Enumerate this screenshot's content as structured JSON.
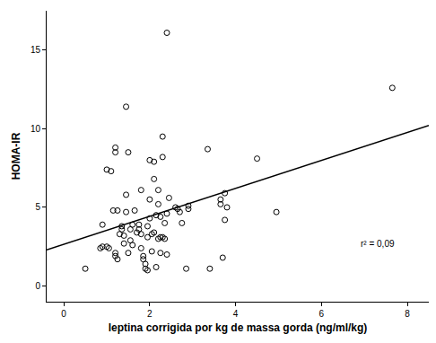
{
  "chart_data": {
    "type": "scatter",
    "x_label": "leptina corrigida por kg de massa gorda (ng/ml/kg)",
    "y_label": "HOMA-IR",
    "marker": "open_circle",
    "color": "#000000",
    "x": [
      0.5,
      0.85,
      0.9,
      1.0,
      1.05,
      0.9,
      1.0,
      1.1,
      1.2,
      1.2,
      1.15,
      1.25,
      1.2,
      1.25,
      1.2,
      1.3,
      1.35,
      1.35,
      1.4,
      1.4,
      1.45,
      1.45,
      1.45,
      1.5,
      1.5,
      1.55,
      1.55,
      1.6,
      1.6,
      1.65,
      1.7,
      1.75,
      1.75,
      1.8,
      1.8,
      1.8,
      1.85,
      1.85,
      1.9,
      1.9,
      1.95,
      1.95,
      1.95,
      2.0,
      2.0,
      2.0,
      2.05,
      2.05,
      2.1,
      2.1,
      2.1,
      2.15,
      2.15,
      2.2,
      2.2,
      2.2,
      2.25,
      2.25,
      2.25,
      2.3,
      2.3,
      2.3,
      2.35,
      2.35,
      2.4,
      2.4,
      2.4,
      2.45,
      2.6,
      2.65,
      2.7,
      2.75,
      2.85,
      2.9,
      2.9,
      3.35,
      3.4,
      3.65,
      3.65,
      3.7,
      3.75,
      3.75,
      3.8,
      4.5,
      4.95,
      7.65
    ],
    "values": [
      1.1,
      2.4,
      2.5,
      2.5,
      2.4,
      3.9,
      7.4,
      7.3,
      8.5,
      8.8,
      4.8,
      4.8,
      2.1,
      1.7,
      1.9,
      3.3,
      3.6,
      3.8,
      3.2,
      2.7,
      5.8,
      4.7,
      11.4,
      2.1,
      8.5,
      3.6,
      2.9,
      3.9,
      2.6,
      4.8,
      3.4,
      3.6,
      3.9,
      6.1,
      3.3,
      2.4,
      1.7,
      1.9,
      1.4,
      1.1,
      1.0,
      3.1,
      3.8,
      4.3,
      5.5,
      8.0,
      2.2,
      3.3,
      3.4,
      6.8,
      7.9,
      1.2,
      4.5,
      5.2,
      6.1,
      3.0,
      4.4,
      3.1,
      2.1,
      9.5,
      8.2,
      3.1,
      3.0,
      4.0,
      2.0,
      16.1,
      4.6,
      5.6,
      5.0,
      4.9,
      4.7,
      4.0,
      1.1,
      5.1,
      4.9,
      8.7,
      1.1,
      5.5,
      5.2,
      1.8,
      4.2,
      5.9,
      5.0,
      8.1,
      4.7,
      12.6
    ],
    "fit": {
      "intercept": 2.65,
      "slope": 0.89,
      "line_style": "solid"
    },
    "annotation": {
      "text": "r² = 0,09",
      "x": 7.3,
      "y": 2.7
    },
    "xlim": [
      -0.4,
      8.5
    ],
    "xticks": [
      0,
      2,
      4,
      6,
      8
    ],
    "ylim": [
      -1,
      17.5
    ],
    "yticks": [
      0,
      5,
      10,
      15
    ],
    "grid": false
  }
}
